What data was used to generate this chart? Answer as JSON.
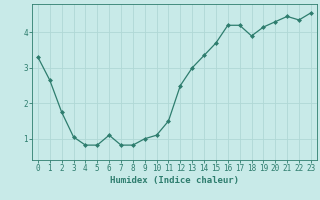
{
  "x": [
    0,
    1,
    2,
    3,
    4,
    5,
    6,
    7,
    8,
    9,
    10,
    11,
    12,
    13,
    14,
    15,
    16,
    17,
    18,
    19,
    20,
    21,
    22,
    23
  ],
  "y": [
    3.3,
    2.65,
    1.75,
    1.05,
    0.82,
    0.82,
    1.1,
    0.82,
    0.82,
    1.0,
    1.1,
    1.5,
    2.5,
    3.0,
    3.35,
    3.7,
    4.2,
    4.2,
    3.9,
    4.15,
    4.3,
    4.45,
    4.35,
    4.55
  ],
  "line_color": "#2e7d6e",
  "marker": "D",
  "marker_size": 2.0,
  "bg_color": "#c8eae8",
  "grid_color": "#b0d8d5",
  "tick_color": "#2e7d6e",
  "label_color": "#2e7d6e",
  "xlabel": "Humidex (Indice chaleur)",
  "ylim": [
    0.4,
    4.8
  ],
  "xlim": [
    -0.5,
    23.5
  ],
  "yticks": [
    1,
    2,
    3,
    4
  ],
  "xticks": [
    0,
    1,
    2,
    3,
    4,
    5,
    6,
    7,
    8,
    9,
    10,
    11,
    12,
    13,
    14,
    15,
    16,
    17,
    18,
    19,
    20,
    21,
    22,
    23
  ],
  "xlabel_fontsize": 6.5,
  "tick_fontsize": 5.5
}
